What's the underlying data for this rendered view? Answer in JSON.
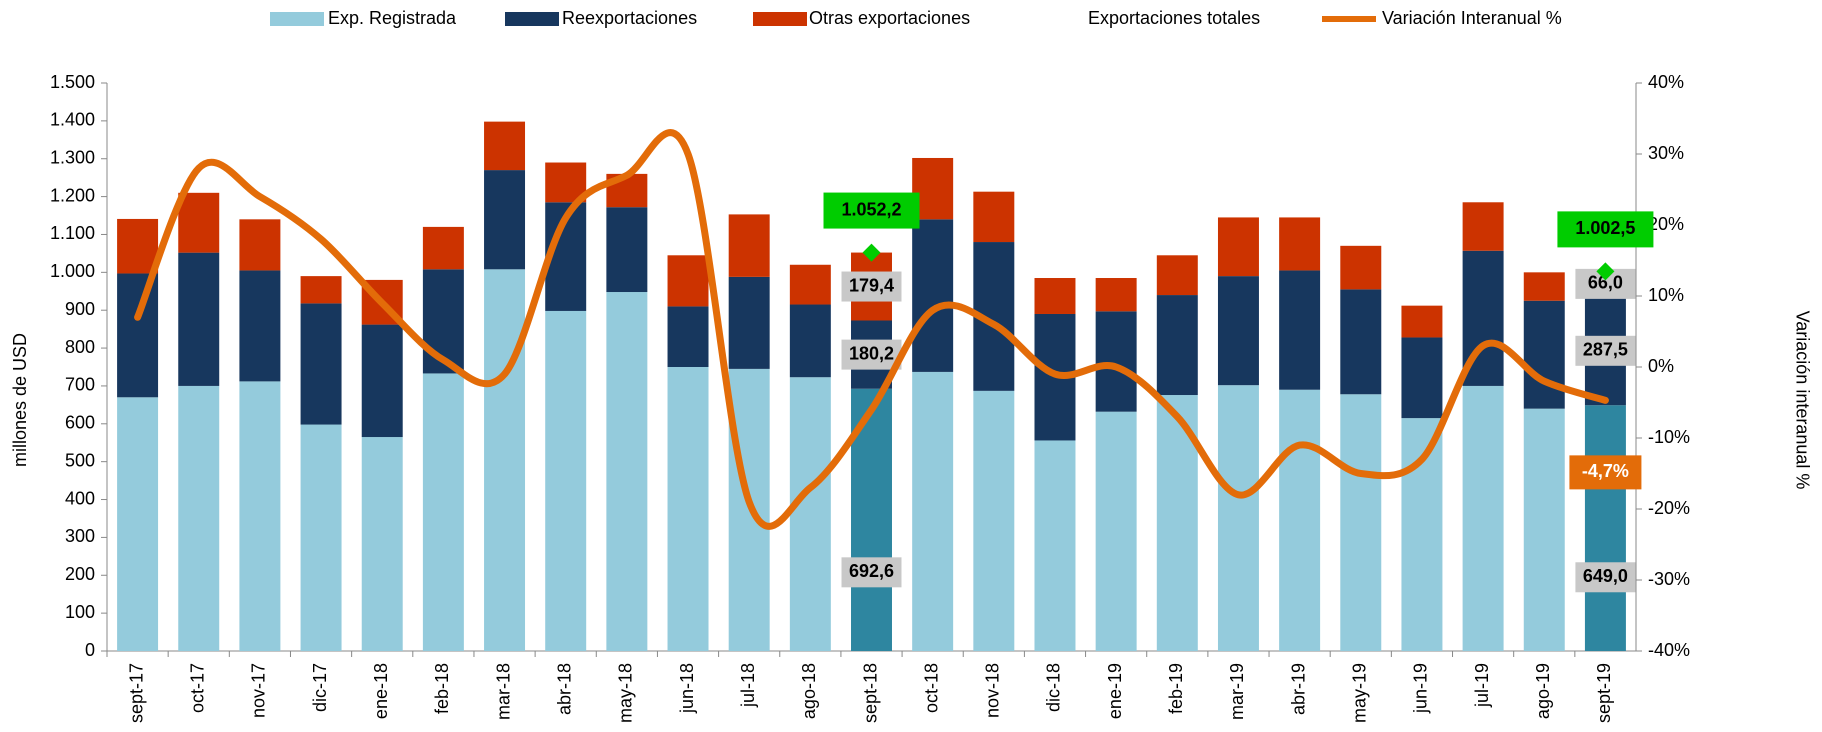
{
  "chart_data": {
    "type": "bar",
    "categories": [
      "sept-17",
      "oct-17",
      "nov-17",
      "dic-17",
      "ene-18",
      "feb-18",
      "mar-18",
      "abr-18",
      "may-18",
      "jun-18",
      "jul-18",
      "ago-18",
      "sept-18",
      "oct-18",
      "nov-18",
      "dic-18",
      "ene-19",
      "feb-19",
      "mar-19",
      "abr-19",
      "may-19",
      "jun-19",
      "jul-19",
      "ago-19",
      "sept-19"
    ],
    "y_label": "millones de  USD",
    "y2_label": "Variación  interanual %",
    "ylim": [
      0,
      1500
    ],
    "yticks": [
      0,
      100,
      200,
      300,
      400,
      500,
      600,
      700,
      800,
      900,
      {
        "value": 1000,
        "label": "1.000"
      },
      {
        "value": 1100,
        "label": "1.100"
      },
      {
        "value": 1200,
        "label": "1.200"
      },
      {
        "value": 1300,
        "label": "1.300"
      },
      {
        "value": 1400,
        "label": "1.400"
      },
      {
        "value": 1500,
        "label": "1.500"
      }
    ],
    "y2lim": [
      -40,
      40
    ],
    "y2ticks": [
      {
        "value": -40,
        "label": "-40%"
      },
      {
        "value": -30,
        "label": "-30%"
      },
      {
        "value": -20,
        "label": "-20%"
      },
      {
        "value": -10,
        "label": "-10%"
      },
      {
        "value": 0,
        "label": "0%"
      },
      {
        "value": 10,
        "label": "10%"
      },
      {
        "value": 20,
        "label": "20%"
      },
      {
        "value": 30,
        "label": "30%"
      },
      {
        "value": 40,
        "label": "40%"
      }
    ],
    "stacked": true,
    "series": [
      {
        "name": "Exp. Registrada",
        "color": "#94cbdc",
        "highlight_color": "#2e86a0",
        "values": [
          670,
          700,
          712,
          598,
          565,
          733,
          1008,
          898,
          948,
          750,
          745,
          723,
          692.6,
          737,
          687,
          556,
          632,
          676,
          702,
          690,
          678,
          615,
          700,
          640,
          649.0
        ],
        "value_labels": [
          null,
          null,
          null,
          null,
          null,
          null,
          null,
          null,
          null,
          null,
          null,
          null,
          "692,6",
          null,
          null,
          null,
          null,
          null,
          null,
          null,
          null,
          null,
          null,
          null,
          "649,0"
        ]
      },
      {
        "name": "Reexportaciones",
        "color": "#17375e",
        "values": [
          327,
          352,
          293,
          320,
          297,
          275,
          262,
          287,
          224,
          160,
          243,
          192,
          180.2,
          403,
          393,
          334,
          265,
          264,
          288,
          315,
          277,
          213,
          357,
          285,
          287.5
        ],
        "value_labels": [
          null,
          null,
          null,
          null,
          null,
          null,
          null,
          null,
          null,
          null,
          null,
          null,
          "180,2",
          null,
          null,
          null,
          null,
          null,
          null,
          null,
          null,
          null,
          null,
          null,
          "287,5"
        ]
      },
      {
        "name": "Otras exportaciones",
        "color": "#cc3300",
        "values": [
          144,
          158,
          135,
          72,
          118,
          112,
          128,
          105,
          88,
          135,
          165,
          105,
          179.4,
          162,
          133,
          95,
          88,
          105,
          155,
          140,
          115,
          84,
          128,
          75,
          66.0
        ],
        "value_labels": [
          null,
          null,
          null,
          null,
          null,
          null,
          null,
          null,
          null,
          null,
          null,
          null,
          "179,4",
          null,
          null,
          null,
          null,
          null,
          null,
          null,
          null,
          null,
          null,
          null,
          "66,0"
        ]
      },
      {
        "name": "Exportaciones totales",
        "type": "marker",
        "color": "#00cc00",
        "values": [
          null,
          null,
          null,
          null,
          null,
          null,
          null,
          null,
          null,
          null,
          null,
          null,
          1052.2,
          null,
          null,
          null,
          null,
          null,
          null,
          null,
          null,
          null,
          null,
          null,
          1002.5
        ],
        "value_labels": [
          null,
          null,
          null,
          null,
          null,
          null,
          null,
          null,
          null,
          null,
          null,
          null,
          "1.052,2",
          null,
          null,
          null,
          null,
          null,
          null,
          null,
          null,
          null,
          null,
          null,
          "1.002,5"
        ]
      },
      {
        "name": "Variación Interanual %",
        "type": "line",
        "axis": "y2",
        "color": "#e36c09",
        "values": [
          7,
          28,
          24,
          18,
          9,
          1,
          -1,
          21,
          27,
          30,
          -19,
          -17,
          -6,
          8,
          6,
          -1,
          0,
          -7,
          -18,
          -11,
          -15,
          -13,
          3,
          -2,
          -4.7
        ],
        "value_labels": [
          null,
          null,
          null,
          null,
          null,
          null,
          null,
          null,
          null,
          null,
          null,
          null,
          null,
          null,
          null,
          null,
          null,
          null,
          null,
          null,
          null,
          null,
          null,
          null,
          "-4,7%"
        ]
      }
    ]
  }
}
